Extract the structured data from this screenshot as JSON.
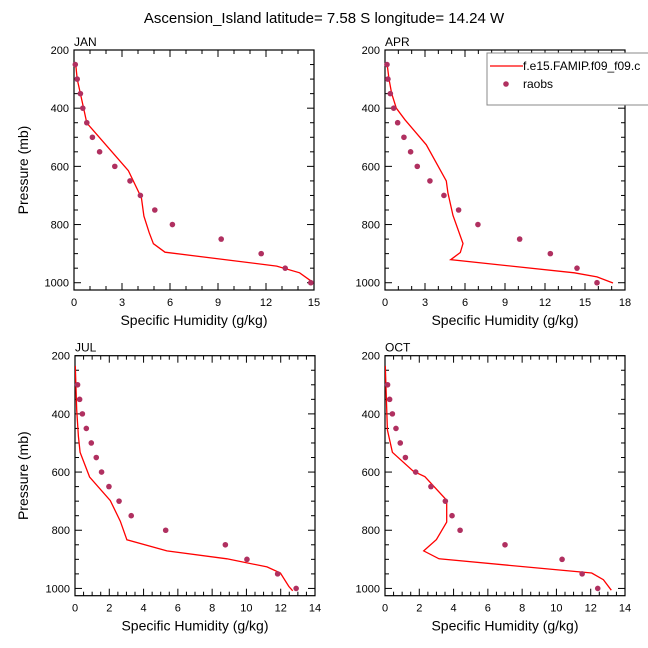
{
  "figure": {
    "title": "Ascension_Island  latitude= 7.58 S longitude= 14.24 W",
    "legend": {
      "model_label": "f.e15.FAMIP.f09_f09.c",
      "obs_label": "raobs",
      "placement": "top-right of APR panel"
    },
    "colors": {
      "model_line": "#ff0000",
      "obs_marker": "#b03060",
      "axis": "#000000"
    }
  },
  "chart_data": [
    {
      "type": "line+scatter",
      "panel": "JAN",
      "title": "JAN",
      "xlabel": "Specific Humidity (g/kg)",
      "ylabel": "Pressure (mb)",
      "xlim": [
        0,
        15
      ],
      "ylim": [
        1025,
        200
      ],
      "y_inverted": true,
      "xticks": [
        0,
        3,
        6,
        9,
        12,
        15
      ],
      "xminor_step": 1,
      "yticks": [
        200,
        400,
        600,
        800,
        1000
      ],
      "yminor_step": 50,
      "series": [
        {
          "name": "f.e15.FAMIP.f09_f09.c",
          "kind": "line",
          "points": [
            [
              0.1,
              245
            ],
            [
              0.2,
              300
            ],
            [
              0.4,
              350
            ],
            [
              0.6,
              400
            ],
            [
              0.8,
              451
            ],
            [
              3.4,
              615
            ],
            [
              4.1,
              695
            ],
            [
              4.2,
              703
            ],
            [
              4.37,
              771
            ],
            [
              4.7,
              828
            ],
            [
              4.96,
              866
            ],
            [
              5.69,
              895
            ],
            [
              12.67,
              943
            ],
            [
              14.1,
              966
            ],
            [
              14.96,
              1000
            ]
          ]
        },
        {
          "name": "raobs",
          "kind": "scatter",
          "points": [
            [
              0.08,
              250
            ],
            [
              0.2,
              300
            ],
            [
              0.4,
              350
            ],
            [
              0.55,
              400
            ],
            [
              0.8,
              450
            ],
            [
              1.15,
              500
            ],
            [
              1.6,
              550
            ],
            [
              2.55,
              600
            ],
            [
              3.5,
              650
            ],
            [
              4.15,
              700
            ],
            [
              5.05,
              750
            ],
            [
              6.15,
              800
            ],
            [
              9.2,
              850
            ],
            [
              11.7,
              900
            ],
            [
              13.2,
              950
            ],
            [
              14.8,
              1000
            ]
          ]
        }
      ]
    },
    {
      "type": "line+scatter",
      "panel": "APR",
      "title": "APR",
      "xlabel": "Specific Humidity (g/kg)",
      "ylabel": "",
      "xlim": [
        0,
        18
      ],
      "ylim": [
        1025,
        200
      ],
      "y_inverted": true,
      "xticks": [
        0,
        3,
        6,
        9,
        12,
        15,
        18
      ],
      "xminor_step": 1,
      "yticks": [
        200,
        400,
        600,
        800,
        1000
      ],
      "yminor_step": 50,
      "series": [
        {
          "name": "f.e15.FAMIP.f09_f09.c",
          "kind": "line",
          "points": [
            [
              0.15,
              245
            ],
            [
              0.3,
              300
            ],
            [
              0.5,
              350
            ],
            [
              0.85,
              400
            ],
            [
              1.5,
              440
            ],
            [
              3.1,
              526
            ],
            [
              4.6,
              650
            ],
            [
              4.72,
              691
            ],
            [
              5.1,
              769
            ],
            [
              5.85,
              865
            ],
            [
              5.65,
              896
            ],
            [
              4.93,
              921
            ],
            [
              14.2,
              966
            ],
            [
              15.9,
              980
            ],
            [
              17.1,
              1001
            ]
          ]
        },
        {
          "name": "raobs",
          "kind": "scatter",
          "points": [
            [
              0.15,
              250
            ],
            [
              0.22,
              300
            ],
            [
              0.4,
              350
            ],
            [
              0.65,
              400
            ],
            [
              0.95,
              450
            ],
            [
              1.42,
              500
            ],
            [
              1.92,
              550
            ],
            [
              2.42,
              600
            ],
            [
              3.37,
              650
            ],
            [
              4.42,
              700
            ],
            [
              5.52,
              750
            ],
            [
              6.97,
              800
            ],
            [
              10.1,
              850
            ],
            [
              12.4,
              900
            ],
            [
              14.4,
              950
            ],
            [
              15.9,
              1000
            ]
          ]
        }
      ]
    },
    {
      "type": "line+scatter",
      "panel": "JUL",
      "title": "JUL",
      "xlabel": "Specific Humidity (g/kg)",
      "ylabel": "Pressure (mb)",
      "xlim": [
        0,
        14
      ],
      "ylim": [
        1025,
        200
      ],
      "y_inverted": true,
      "xticks": [
        0,
        2,
        4,
        6,
        8,
        10,
        12,
        14
      ],
      "xminor_step": 0.5,
      "yticks": [
        200,
        400,
        600,
        800,
        1000
      ],
      "yminor_step": 50,
      "series": [
        {
          "name": "f.e15.FAMIP.f09_f09.c",
          "kind": "line",
          "points": [
            [
              0.02,
              235
            ],
            [
              0.1,
              386
            ],
            [
              0.2,
              477
            ],
            [
              0.3,
              532
            ],
            [
              0.85,
              617
            ],
            [
              2.06,
              698
            ],
            [
              2.64,
              769
            ],
            [
              3.03,
              833
            ],
            [
              5.36,
              871
            ],
            [
              8.86,
              898
            ],
            [
              11.2,
              926
            ],
            [
              11.98,
              947
            ],
            [
              12.47,
              993
            ],
            [
              12.7,
              1008
            ]
          ]
        },
        {
          "name": "raobs",
          "kind": "scatter",
          "points": [
            [
              0.15,
              300
            ],
            [
              0.27,
              350
            ],
            [
              0.43,
              400
            ],
            [
              0.66,
              450
            ],
            [
              0.95,
              500
            ],
            [
              1.24,
              550
            ],
            [
              1.55,
              600
            ],
            [
              1.98,
              650
            ],
            [
              2.57,
              700
            ],
            [
              3.28,
              750
            ],
            [
              5.29,
              800
            ],
            [
              8.77,
              850
            ],
            [
              10.03,
              900
            ],
            [
              11.82,
              950
            ],
            [
              12.9,
              1000
            ]
          ]
        }
      ]
    },
    {
      "type": "line+scatter",
      "panel": "OCT",
      "title": "OCT",
      "xlabel": "Specific Humidity (g/kg)",
      "ylabel": "",
      "xlim": [
        0,
        14
      ],
      "ylim": [
        1025,
        200
      ],
      "y_inverted": true,
      "xticks": [
        0,
        2,
        4,
        6,
        8,
        10,
        12,
        14
      ],
      "xminor_step": 0.5,
      "yticks": [
        200,
        400,
        600,
        800,
        1000
      ],
      "yminor_step": 50,
      "series": [
        {
          "name": "f.e15.FAMIP.f09_f09.c",
          "kind": "line",
          "points": [
            [
              0.02,
              235
            ],
            [
              0.14,
              455
            ],
            [
              0.43,
              532
            ],
            [
              1.65,
              597
            ],
            [
              2.33,
              616
            ],
            [
              3.6,
              697
            ],
            [
              3.6,
              772
            ],
            [
              3.0,
              832
            ],
            [
              2.26,
              871
            ],
            [
              3.15,
              898
            ],
            [
              12.06,
              947
            ],
            [
              12.74,
              970
            ],
            [
              13.2,
              1006
            ]
          ]
        },
        {
          "name": "raobs",
          "kind": "scatter",
          "points": [
            [
              0.15,
              300
            ],
            [
              0.27,
              350
            ],
            [
              0.43,
              400
            ],
            [
              0.64,
              450
            ],
            [
              0.89,
              500
            ],
            [
              1.19,
              550
            ],
            [
              1.79,
              600
            ],
            [
              2.68,
              650
            ],
            [
              3.52,
              700
            ],
            [
              3.91,
              750
            ],
            [
              4.38,
              800
            ],
            [
              7.0,
              850
            ],
            [
              10.33,
              900
            ],
            [
              11.5,
              950
            ],
            [
              12.41,
              1000
            ]
          ]
        }
      ]
    }
  ]
}
